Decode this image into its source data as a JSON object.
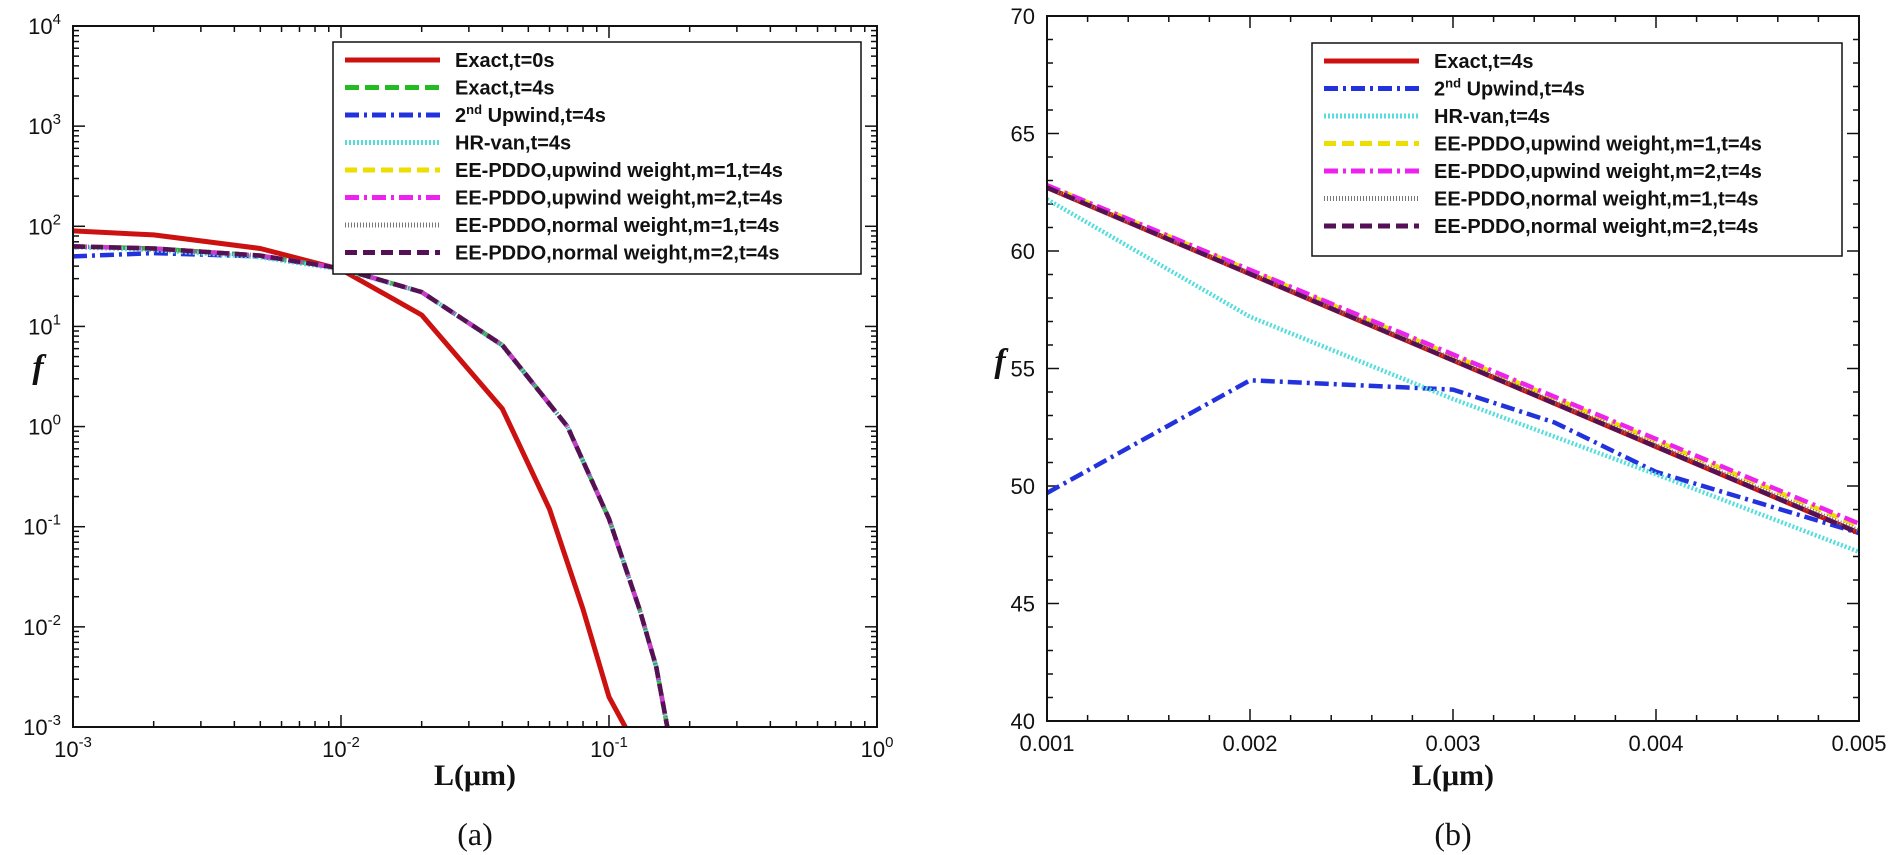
{
  "chart_data": [
    {
      "type": "line",
      "panel": "a",
      "caption": "(a)",
      "xlabel": "L(μm)",
      "ylabel": "f",
      "xscale": "log",
      "yscale": "log",
      "xlim": [
        0.001,
        1
      ],
      "ylim": [
        0.001,
        10000
      ],
      "x_ticks": [
        {
          "v": 0.001,
          "base": "10",
          "exp": "-3"
        },
        {
          "v": 0.01,
          "base": "10",
          "exp": "-2"
        },
        {
          "v": 0.1,
          "base": "10",
          "exp": "-1"
        },
        {
          "v": 1,
          "base": "10",
          "exp": "0"
        }
      ],
      "y_ticks": [
        {
          "v": 0.001,
          "base": "10",
          "exp": "-3"
        },
        {
          "v": 0.01,
          "base": "10",
          "exp": "-2"
        },
        {
          "v": 0.1,
          "base": "10",
          "exp": "-1"
        },
        {
          "v": 1,
          "base": "10",
          "exp": "0"
        },
        {
          "v": 10,
          "base": "10",
          "exp": "1"
        },
        {
          "v": 100,
          "base": "10",
          "exp": "2"
        },
        {
          "v": 1000,
          "base": "10",
          "exp": "3"
        },
        {
          "v": 10000,
          "base": "10",
          "exp": "4"
        }
      ],
      "legend_position": "top-right",
      "series": [
        {
          "name": "Exact,t=0s",
          "color": "#cc1111",
          "dash": "",
          "x": [
            0.001,
            0.002,
            0.005,
            0.01,
            0.02,
            0.04,
            0.06,
            0.08,
            0.1,
            0.115
          ],
          "values": [
            90,
            82,
            60,
            37,
            13,
            1.5,
            0.15,
            0.015,
            0.002,
            0.001
          ]
        },
        {
          "name": "Exact,t=4s",
          "color": "#22bb22",
          "dash": "14,6",
          "sup": "",
          "x": [
            0.001,
            0.002,
            0.005,
            0.01,
            0.02,
            0.04,
            0.07,
            0.1,
            0.13,
            0.15,
            0.165
          ],
          "values": [
            63,
            60,
            51,
            38,
            22,
            6.5,
            1.0,
            0.12,
            0.015,
            0.004,
            0.001
          ]
        },
        {
          "name": "Upwind,t=4s",
          "label_prefix": "2",
          "sup": "nd",
          "label_suffix": " Upwind,t=4s",
          "color": "#2233dd",
          "dash": "14,5,3,5",
          "x": [
            0.001,
            0.002,
            0.005,
            0.01,
            0.02,
            0.04,
            0.07,
            0.1,
            0.13,
            0.15,
            0.165
          ],
          "values": [
            50,
            54,
            50,
            38,
            22,
            6.5,
            1.0,
            0.12,
            0.015,
            0.004,
            0.001
          ]
        },
        {
          "name": "HR-van,t=4s",
          "color": "#55dddd",
          "dash": "2,2",
          "x": [
            0.001,
            0.002,
            0.005,
            0.01,
            0.02,
            0.04,
            0.07,
            0.1,
            0.13,
            0.15,
            0.165
          ],
          "values": [
            62,
            58,
            49,
            37,
            22,
            6.4,
            1.0,
            0.12,
            0.015,
            0.004,
            0.001
          ]
        },
        {
          "name": "EE-PDDO,upwind weight,m=1,t=4s",
          "color": "#eedd00",
          "dash": "12,6",
          "x": [
            0.001,
            0.002,
            0.005,
            0.01,
            0.02,
            0.04,
            0.07,
            0.1,
            0.13,
            0.15,
            0.165
          ],
          "values": [
            63,
            60,
            51,
            38,
            22,
            6.5,
            1.0,
            0.12,
            0.015,
            0.004,
            0.001
          ]
        },
        {
          "name": "EE-PDDO,upwind weight,m=2,t=4s",
          "color": "#ee22ee",
          "dash": "14,5,3,5",
          "x": [
            0.001,
            0.002,
            0.005,
            0.01,
            0.02,
            0.04,
            0.07,
            0.1,
            0.13,
            0.15,
            0.165
          ],
          "values": [
            63,
            60,
            51,
            38,
            22,
            6.5,
            1.0,
            0.12,
            0.015,
            0.004,
            0.001
          ]
        },
        {
          "name": "EE-PDDO,normal weight,m=1,t=4s",
          "color": "#777777",
          "dash": "1,2",
          "x": [
            0.001,
            0.002,
            0.005,
            0.01,
            0.02,
            0.04,
            0.07,
            0.1,
            0.13,
            0.15,
            0.165
          ],
          "values": [
            63,
            60,
            51,
            38,
            22,
            6.5,
            1.0,
            0.12,
            0.015,
            0.004,
            0.001
          ]
        },
        {
          "name": "EE-PDDO,normal weight,m=2,t=4s",
          "color": "#551155",
          "dash": "12,6",
          "x": [
            0.001,
            0.002,
            0.005,
            0.01,
            0.02,
            0.04,
            0.07,
            0.1,
            0.13,
            0.15,
            0.165
          ],
          "values": [
            63,
            60,
            51,
            38,
            22,
            6.5,
            1.0,
            0.12,
            0.015,
            0.004,
            0.001
          ]
        }
      ]
    },
    {
      "type": "line",
      "panel": "b",
      "caption": "(b)",
      "xlabel": "L(μm)",
      "ylabel": "f",
      "xscale": "linear",
      "yscale": "linear",
      "xlim": [
        0.001,
        0.005
      ],
      "ylim": [
        40,
        70
      ],
      "x_ticks": [
        {
          "v": 0.001,
          "label": "0.001"
        },
        {
          "v": 0.002,
          "label": "0.002"
        },
        {
          "v": 0.003,
          "label": "0.003"
        },
        {
          "v": 0.004,
          "label": "0.004"
        },
        {
          "v": 0.005,
          "label": "0.005"
        }
      ],
      "y_ticks": [
        {
          "v": 40,
          "label": "40"
        },
        {
          "v": 45,
          "label": "45"
        },
        {
          "v": 50,
          "label": "50"
        },
        {
          "v": 55,
          "label": "55"
        },
        {
          "v": 60,
          "label": "60"
        },
        {
          "v": 65,
          "label": "65"
        },
        {
          "v": 70,
          "label": "70"
        }
      ],
      "legend_position": "top-right",
      "series": [
        {
          "name": "Exact,t=4s",
          "color": "#cc1111",
          "dash": "",
          "x": [
            0.001,
            0.005
          ],
          "values": [
            62.7,
            48.0
          ]
        },
        {
          "name": "Upwind,t=4s",
          "label_prefix": "2",
          "sup": "nd",
          "label_suffix": " Upwind,t=4s",
          "color": "#2233dd",
          "dash": "14,5,3,5",
          "x": [
            0.001,
            0.002,
            0.003,
            0.0035,
            0.004,
            0.005
          ],
          "values": [
            49.7,
            54.5,
            54.1,
            52.7,
            50.6,
            48.0
          ]
        },
        {
          "name": "HR-van,t=4s",
          "color": "#55dddd",
          "dash": "2,2",
          "x": [
            0.001,
            0.002,
            0.003,
            0.004,
            0.005
          ],
          "values": [
            62.2,
            57.2,
            53.7,
            50.5,
            47.2
          ]
        },
        {
          "name": "EE-PDDO,upwind weight,m=1,t=4s",
          "color": "#eedd00",
          "dash": "12,6",
          "x": [
            0.001,
            0.005
          ],
          "values": [
            62.8,
            48.3
          ]
        },
        {
          "name": "EE-PDDO,upwind weight,m=2,t=4s",
          "color": "#ee22ee",
          "dash": "14,5,3,5",
          "x": [
            0.001,
            0.005
          ],
          "values": [
            62.8,
            48.4
          ]
        },
        {
          "name": "EE-PDDO,normal weight,m=1,t=4s",
          "color": "#777777",
          "dash": "1,2",
          "x": [
            0.001,
            0.005
          ],
          "values": [
            62.7,
            48.1
          ]
        },
        {
          "name": "EE-PDDO,normal weight,m=2,t=4s",
          "color": "#551155",
          "dash": "12,6",
          "x": [
            0.001,
            0.005
          ],
          "values": [
            62.7,
            48.0
          ]
        }
      ]
    }
  ]
}
